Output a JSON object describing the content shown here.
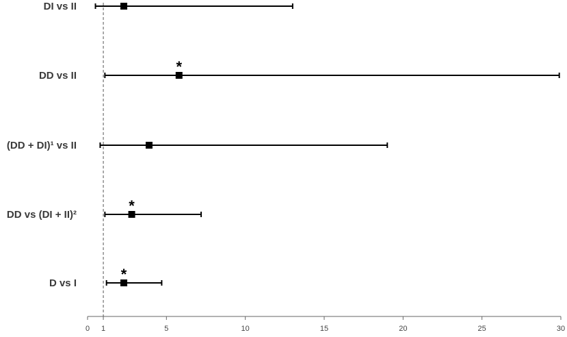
{
  "chart_data": {
    "type": "forest",
    "xlim": [
      0,
      30
    ],
    "x_ticks": [
      {
        "value": 0,
        "label": "0"
      },
      {
        "value": 1,
        "label": "1"
      },
      {
        "value": 5,
        "label": "5"
      },
      {
        "value": 10,
        "label": "10"
      },
      {
        "value": 15,
        "label": "15"
      },
      {
        "value": 20,
        "label": "20"
      },
      {
        "value": 25,
        "label": "25"
      },
      {
        "value": 30,
        "label": "30"
      }
    ],
    "reference_line": 1,
    "rows": [
      {
        "label": "DI vs II",
        "estimate": 2.3,
        "lower": 0.5,
        "upper": 13.0,
        "significant": false,
        "marker": ""
      },
      {
        "label": "DD vs II",
        "estimate": 5.8,
        "lower": 1.1,
        "upper": 29.9,
        "significant": true,
        "marker": "*"
      },
      {
        "label": "(DD + DI)¹ vs II",
        "estimate": 3.9,
        "lower": 0.8,
        "upper": 19.0,
        "significant": false,
        "marker": ""
      },
      {
        "label": "DD vs (DI + II)²",
        "estimate": 2.8,
        "lower": 1.1,
        "upper": 7.2,
        "significant": true,
        "marker": "*"
      },
      {
        "label": "D vs I",
        "estimate": 2.3,
        "lower": 1.2,
        "upper": 4.7,
        "significant": true,
        "marker": "*"
      }
    ],
    "colors": {
      "marks": "#000000",
      "text": "#3a3a3a",
      "reference": "#555555"
    }
  }
}
